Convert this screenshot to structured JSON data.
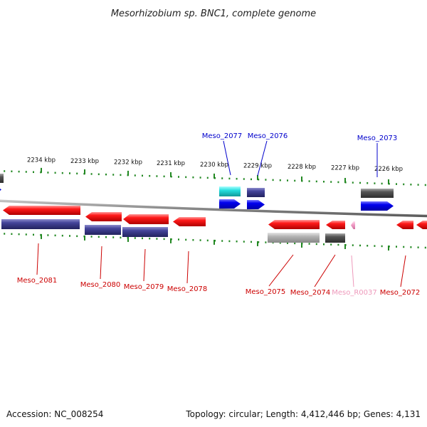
{
  "title": "Mesorhizobium sp. BNC1, complete genome",
  "accession": "Accession: NC_008254",
  "topology": "Topology: circular; Length: 4,412,446 bp; Genes: 4,131",
  "kbp_labels": [
    "2234 kbp",
    "2233 kbp",
    "2232 kbp",
    "2231 kbp",
    "2230 kbp",
    "2229 kbp",
    "2228 kbp",
    "2227 kbp",
    "2226 kbp"
  ],
  "colors": {
    "red": "#ee1111",
    "navy": "#3c3c8c",
    "blue": "#0000ee",
    "cyan": "#22dddd",
    "grey": "#555555",
    "lightgrey": "#aaaaaa",
    "pink": "#f2a0c8",
    "label_red": "#cc0000",
    "label_blue": "#0000cc",
    "label_pink": "#ee99bb",
    "tick_green": "#228822"
  },
  "gene_labels": [
    {
      "text": "Meso_2077",
      "color": "blue"
    },
    {
      "text": "Meso_2076",
      "color": "blue"
    },
    {
      "text": "Meso_2073",
      "color": "blue"
    },
    {
      "text": "Meso_2081",
      "color": "red"
    },
    {
      "text": "Meso_2080",
      "color": "red"
    },
    {
      "text": "Meso_2079",
      "color": "red"
    },
    {
      "text": "Meso_2078",
      "color": "red"
    },
    {
      "text": "Meso_2075",
      "color": "red"
    },
    {
      "text": "Meso_2074",
      "color": "red"
    },
    {
      "text": "Meso_R0037",
      "color": "pink"
    },
    {
      "text": "Meso_2072",
      "color": "red"
    }
  ]
}
